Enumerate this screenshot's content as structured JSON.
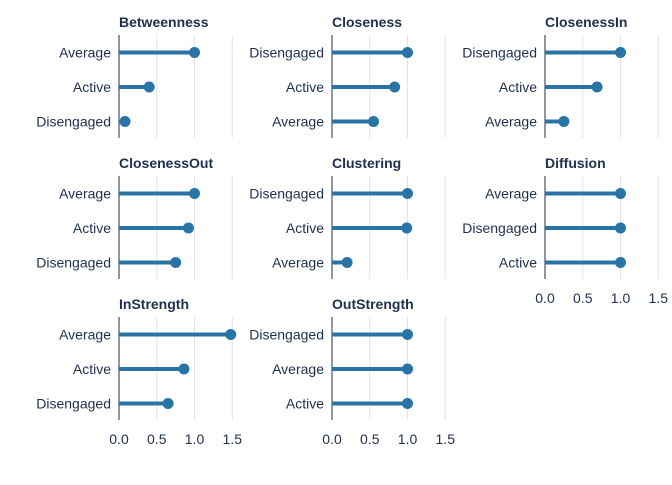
{
  "chart_data": {
    "type": "lollipop-facets",
    "title": "",
    "xlabel": "",
    "ylabel": "",
    "xlim": [
      0,
      1.5
    ],
    "xticks": [
      0,
      0.5,
      1,
      1.5
    ],
    "xtick_labels": [
      "0.0",
      "0.5",
      "1.0",
      "1.5"
    ],
    "grid": true,
    "color": "#2874a6",
    "text_color": "#1f2f4d",
    "panels": [
      {
        "title": "Betweenness",
        "items": [
          {
            "label": "Average",
            "value": 1.0
          },
          {
            "label": "Active",
            "value": 0.4
          },
          {
            "label": "Disengaged",
            "value": 0.08
          }
        ]
      },
      {
        "title": "Closeness",
        "items": [
          {
            "label": "Disengaged",
            "value": 1.0
          },
          {
            "label": "Active",
            "value": 0.83
          },
          {
            "label": "Average",
            "value": 0.55
          }
        ]
      },
      {
        "title": "ClosenessIn",
        "items": [
          {
            "label": "Disengaged",
            "value": 1.0
          },
          {
            "label": "Active",
            "value": 0.69
          },
          {
            "label": "Average",
            "value": 0.25
          }
        ]
      },
      {
        "title": "ClosenessOut",
        "items": [
          {
            "label": "Average",
            "value": 1.0
          },
          {
            "label": "Active",
            "value": 0.92
          },
          {
            "label": "Disengaged",
            "value": 0.75
          }
        ]
      },
      {
        "title": "Clustering",
        "items": [
          {
            "label": "Disengaged",
            "value": 1.0
          },
          {
            "label": "Active",
            "value": 0.99
          },
          {
            "label": "Average",
            "value": 0.2
          }
        ]
      },
      {
        "title": "Diffusion",
        "items": [
          {
            "label": "Average",
            "value": 1.0
          },
          {
            "label": "Disengaged",
            "value": 1.0
          },
          {
            "label": "Active",
            "value": 1.0
          }
        ]
      },
      {
        "title": "InStrength",
        "items": [
          {
            "label": "Average",
            "value": 1.48
          },
          {
            "label": "Active",
            "value": 0.86
          },
          {
            "label": "Disengaged",
            "value": 0.65
          }
        ]
      },
      {
        "title": "OutStrength",
        "items": [
          {
            "label": "Disengaged",
            "value": 1.0
          },
          {
            "label": "Average",
            "value": 1.0
          },
          {
            "label": "Active",
            "value": 1.0
          }
        ]
      }
    ]
  }
}
